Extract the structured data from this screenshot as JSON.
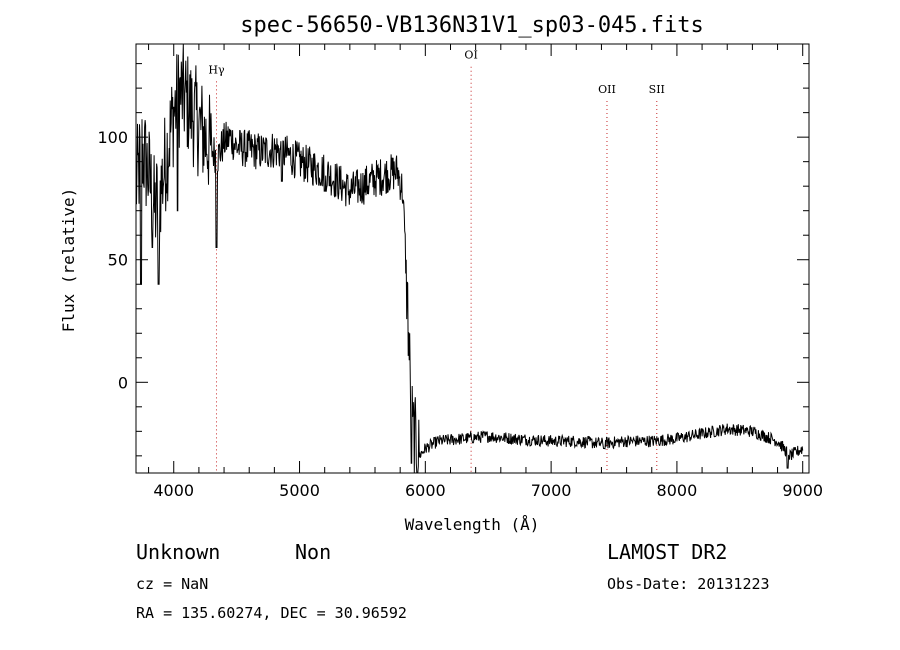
{
  "chart_data": {
    "type": "line",
    "title": "spec-56650-VB136N31V1_sp03-045.fits",
    "xlabel": "Wavelength (Å)",
    "ylabel": "Flux (relative)",
    "xlim": [
      3700,
      9050
    ],
    "ylim": [
      -37,
      138
    ],
    "xticks": [
      4000,
      5000,
      6000,
      7000,
      8000,
      9000
    ],
    "yticks": [
      0,
      50,
      100
    ],
    "grid": false,
    "spectrum_anchors": [
      [
        3700,
        80
      ],
      [
        3750,
        95
      ],
      [
        3800,
        85
      ],
      [
        3850,
        70
      ],
      [
        3900,
        80
      ],
      [
        3950,
        95
      ],
      [
        4000,
        110
      ],
      [
        4050,
        118
      ],
      [
        4100,
        115
      ],
      [
        4150,
        110
      ],
      [
        4200,
        105
      ],
      [
        4250,
        100
      ],
      [
        4300,
        95
      ],
      [
        4350,
        92
      ],
      [
        4400,
        98
      ],
      [
        4450,
        100
      ],
      [
        4500,
        96
      ],
      [
        4600,
        95
      ],
      [
        4700,
        94
      ],
      [
        4800,
        95
      ],
      [
        4900,
        93
      ],
      [
        5000,
        90
      ],
      [
        5100,
        88
      ],
      [
        5200,
        86
      ],
      [
        5300,
        82
      ],
      [
        5400,
        78
      ],
      [
        5500,
        80
      ],
      [
        5600,
        83
      ],
      [
        5700,
        85
      ],
      [
        5780,
        86
      ],
      [
        5820,
        78
      ],
      [
        5840,
        55
      ],
      [
        5860,
        30
      ],
      [
        5880,
        0
      ],
      [
        5900,
        -20
      ],
      [
        5950,
        -30
      ],
      [
        6000,
        -27
      ],
      [
        6100,
        -24
      ],
      [
        6300,
        -23
      ],
      [
        6500,
        -22
      ],
      [
        6700,
        -23
      ],
      [
        7000,
        -24
      ],
      [
        7200,
        -24
      ],
      [
        7400,
        -25
      ],
      [
        7600,
        -24
      ],
      [
        7800,
        -24
      ],
      [
        8000,
        -23
      ],
      [
        8200,
        -21
      ],
      [
        8400,
        -19
      ],
      [
        8600,
        -20
      ],
      [
        8800,
        -24
      ],
      [
        8900,
        -30
      ],
      [
        9000,
        -27
      ]
    ],
    "spectrum_dips": [
      [
        3740,
        40
      ],
      [
        3830,
        55
      ],
      [
        3880,
        40
      ],
      [
        4030,
        70
      ],
      [
        4340,
        55
      ],
      [
        4860,
        82
      ],
      [
        5200,
        78
      ],
      [
        5890,
        -33
      ],
      [
        7420,
        -27
      ],
      [
        8880,
        -35
      ]
    ],
    "lines": [
      {
        "label": "Hγ",
        "wavelength": 4340,
        "y": 126
      },
      {
        "label": "OI",
        "wavelength": 6364,
        "y": 132
      },
      {
        "label": "OII",
        "wavelength": 7444,
        "y": 118
      },
      {
        "label": "SII",
        "wavelength": 7840,
        "y": 118
      }
    ]
  },
  "info": {
    "classification": "Unknown",
    "subclass": "Non",
    "survey": "LAMOST DR2",
    "cz": "cz = NaN",
    "obs_date": "Obs-Date: 20131223",
    "coords": "RA = 135.60274, DEC =  30.96592"
  }
}
